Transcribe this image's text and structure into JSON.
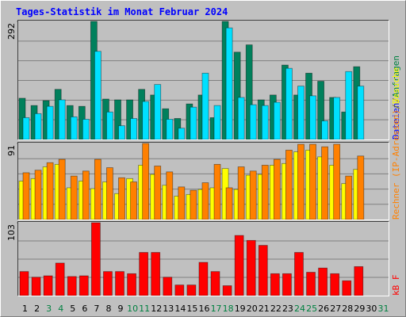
{
  "title": "Tages-Statistik im Monat Februar 2024",
  "separator": "/",
  "chart_data": [
    {
      "type": "bar",
      "ylim": [
        0,
        292
      ],
      "yticks": [
        292
      ],
      "series": [
        {
          "name": "Anfragen",
          "color": "#00805c",
          "label_color": "#008040",
          "values": [
            102,
            84,
            96,
            124,
            84,
            82,
            292,
            100,
            98,
            98,
            124,
            110,
            76,
            52,
            88,
            110,
            54,
            292,
            216,
            234,
            98,
            110,
            184,
            110,
            164,
            144,
            104,
            68,
            180,
            null,
            null
          ]
        },
        {
          "name": "Dateien",
          "color": "#00e0ff",
          "label_color": "#0000ff",
          "values": [
            54,
            64,
            82,
            98,
            56,
            50,
            218,
            68,
            34,
            52,
            94,
            136,
            50,
            28,
            80,
            164,
            84,
            276,
            104,
            86,
            84,
            92,
            176,
            132,
            108,
            46,
            104,
            168,
            132,
            null,
            null
          ]
        }
      ]
    },
    {
      "type": "bar",
      "ylim": [
        0,
        91
      ],
      "yticks": [
        91
      ],
      "series": [
        {
          "name": "Besuche",
          "color": "#ffff00",
          "label_color": "#ffff00",
          "values": [
            46,
            49,
            63,
            66,
            38,
            46,
            37,
            45,
            31,
            49,
            65,
            54,
            41,
            28,
            30,
            36,
            38,
            61,
            36,
            53,
            54,
            65,
            67,
            81,
            83,
            75,
            65,
            43,
            60,
            null,
            null
          ]
        },
        {
          "name": "Rechner (IP-Adressen)",
          "color": "#ff8000",
          "label_color": "#ff8000",
          "values": [
            56,
            59,
            68,
            72,
            52,
            58,
            72,
            62,
            50,
            45,
            91,
            64,
            57,
            39,
            35,
            44,
            66,
            38,
            63,
            58,
            65,
            72,
            83,
            90,
            90,
            87,
            90,
            52,
            76,
            null,
            null
          ]
        }
      ]
    },
    {
      "type": "bar",
      "ylim": [
        0,
        103
      ],
      "yticks": [
        103
      ],
      "categories": [
        "1",
        "2",
        "3",
        "4",
        "5",
        "6",
        "7",
        "8",
        "9",
        "10",
        "11",
        "12",
        "13",
        "14",
        "15",
        "16",
        "17",
        "18",
        "19",
        "20",
        "21",
        "22",
        "23",
        "24",
        "25",
        "26",
        "27",
        "28",
        "29",
        "30",
        "31"
      ],
      "category_color": "#000000",
      "weekend_color": "#008040",
      "weekend": [
        2,
        3,
        9,
        10,
        16,
        17,
        23,
        24,
        30
      ],
      "series": [
        {
          "name": "kB F",
          "color": "#ff0000",
          "label_color": "#ff0000",
          "values": [
            34,
            26,
            28,
            46,
            27,
            28,
            103,
            34,
            34,
            31,
            61,
            61,
            26,
            15,
            15,
            47,
            34,
            14,
            85,
            78,
            71,
            31,
            31,
            61,
            33,
            39,
            31,
            21,
            41,
            null,
            null
          ]
        }
      ]
    }
  ]
}
